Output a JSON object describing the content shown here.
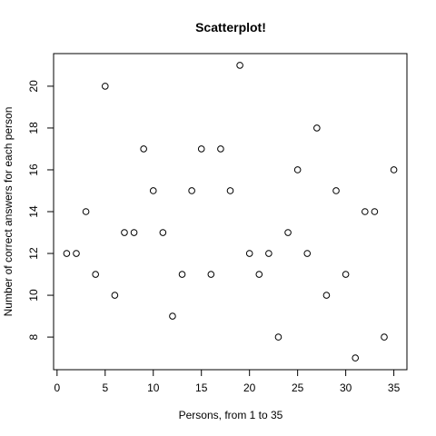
{
  "chart_data": {
    "type": "scatter",
    "title": "Scatterplot!",
    "x_label": "Persons, from 1 to 35",
    "y_label": "Number of correct answers for each person",
    "x": [
      1,
      2,
      3,
      4,
      5,
      6,
      7,
      8,
      9,
      10,
      11,
      12,
      13,
      14,
      15,
      16,
      17,
      18,
      19,
      20,
      21,
      22,
      23,
      24,
      25,
      26,
      27,
      28,
      29,
      30,
      31,
      32,
      33,
      34,
      35
    ],
    "values": [
      12,
      12,
      14,
      11,
      20,
      10,
      13,
      13,
      17,
      15,
      13,
      9,
      11,
      15,
      17,
      11,
      17,
      15,
      21,
      12,
      11,
      12,
      8,
      13,
      16,
      12,
      18,
      10,
      15,
      11,
      7,
      14,
      14,
      8,
      16
    ],
    "color": "#000000",
    "xlim": [
      -0.36,
      36.36
    ],
    "xticks": [
      0,
      5,
      10,
      15,
      20,
      25,
      30,
      35
    ],
    "ylim": [
      6.44,
      21.56
    ],
    "yticks": [
      8,
      10,
      12,
      14,
      16,
      18,
      20
    ],
    "grid": false
  }
}
